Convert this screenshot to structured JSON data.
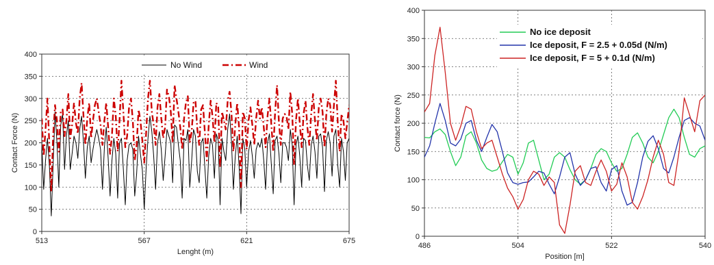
{
  "chart_data": [
    {
      "type": "line",
      "title": "",
      "xlabel": "Lenght (m)",
      "ylabel": "Contact Force (N)",
      "xlim": [
        513,
        675
      ],
      "ylim": [
        0,
        400
      ],
      "xticks": [
        "513",
        "567",
        "621",
        "675"
      ],
      "yticks": [
        "0",
        "50",
        "100",
        "150",
        "200",
        "250",
        "300",
        "350",
        "400"
      ],
      "grid": "dashed",
      "legend_position": "top-right",
      "series": [
        {
          "name": "No Wind",
          "color": "#000000",
          "style": "solid",
          "x": [
            513,
            514,
            515,
            516,
            517,
            518,
            519,
            520,
            521,
            522,
            523,
            524,
            525,
            526,
            527,
            528,
            529,
            530,
            531,
            532,
            533,
            534,
            535,
            536,
            537,
            538,
            539,
            540,
            541,
            542,
            543,
            544,
            545,
            546,
            547,
            548,
            549,
            550,
            551,
            552,
            553,
            554,
            555,
            556,
            557,
            558,
            559,
            560,
            561,
            562,
            563,
            564,
            565,
            566,
            567,
            568,
            569,
            570,
            571,
            572,
            573,
            574,
            575,
            576,
            577,
            578,
            579,
            580,
            581,
            582,
            583,
            584,
            585,
            586,
            587,
            588,
            589,
            590,
            591,
            592,
            593,
            594,
            595,
            596,
            597,
            598,
            599,
            600,
            601,
            602,
            603,
            604,
            605,
            606,
            607,
            608,
            609,
            610,
            611,
            612,
            613,
            614,
            615,
            616,
            617,
            618,
            619,
            620,
            621,
            622,
            623,
            624,
            625,
            626,
            627,
            628,
            629,
            630,
            631,
            632,
            633,
            634,
            635,
            636,
            637,
            638,
            639,
            640,
            641,
            642,
            643,
            644,
            645,
            646,
            647,
            648,
            649,
            650,
            651,
            652,
            653,
            654,
            655,
            656,
            657,
            658,
            659,
            660,
            661,
            662,
            663,
            664,
            665,
            666,
            667,
            668,
            669,
            670,
            671,
            672,
            673,
            674,
            675
          ],
          "y": [
            200,
            95,
            160,
            210,
            150,
            35,
            150,
            270,
            200,
            100,
            240,
            265,
            140,
            215,
            250,
            140,
            175,
            215,
            200,
            165,
            230,
            260,
            200,
            120,
            190,
            215,
            155,
            185,
            210,
            230,
            210,
            185,
            95,
            190,
            235,
            165,
            80,
            160,
            210,
            175,
            75,
            200,
            210,
            140,
            60,
            160,
            195,
            200,
            185,
            80,
            130,
            215,
            175,
            140,
            50,
            140,
            210,
            260,
            225,
            170,
            95,
            200,
            225,
            185,
            115,
            170,
            230,
            215,
            200,
            110,
            240,
            235,
            195,
            160,
            75,
            210,
            205,
            230,
            100,
            160,
            230,
            215,
            135,
            110,
            200,
            210,
            140,
            75,
            170,
            210,
            195,
            120,
            220,
            205,
            60,
            210,
            180,
            160,
            230,
            265,
            200,
            95,
            170,
            215,
            150,
            40,
            210,
            185,
            100,
            180,
            205,
            170,
            120,
            185,
            200,
            190,
            210,
            160,
            95,
            200,
            220,
            150,
            85,
            205,
            215,
            175,
            110,
            200,
            200,
            190,
            160,
            230,
            195,
            60,
            195,
            215,
            170,
            100,
            210,
            205,
            150,
            115,
            195,
            215,
            180,
            120,
            215,
            220,
            190,
            90,
            205,
            225,
            200,
            125,
            215,
            230,
            150,
            100,
            210,
            180,
            115,
            200,
            210
          ]
        },
        {
          "name": "Wind",
          "color": "#cc0000",
          "style": "dash-dot",
          "x": [
            513,
            514,
            515,
            516,
            517,
            518,
            519,
            520,
            521,
            522,
            523,
            524,
            525,
            526,
            527,
            528,
            529,
            530,
            531,
            532,
            533,
            534,
            535,
            536,
            537,
            538,
            539,
            540,
            541,
            542,
            543,
            544,
            545,
            546,
            547,
            548,
            549,
            550,
            551,
            552,
            553,
            554,
            555,
            556,
            557,
            558,
            559,
            560,
            561,
            562,
            563,
            564,
            565,
            566,
            567,
            568,
            569,
            570,
            571,
            572,
            573,
            574,
            575,
            576,
            577,
            578,
            579,
            580,
            581,
            582,
            583,
            584,
            585,
            586,
            587,
            588,
            589,
            590,
            591,
            592,
            593,
            594,
            595,
            596,
            597,
            598,
            599,
            600,
            601,
            602,
            603,
            604,
            605,
            606,
            607,
            608,
            609,
            610,
            611,
            612,
            613,
            614,
            615,
            616,
            617,
            618,
            619,
            620,
            621,
            622,
            623,
            624,
            625,
            626,
            627,
            628,
            629,
            630,
            631,
            632,
            633,
            634,
            635,
            636,
            637,
            638,
            639,
            640,
            641,
            642,
            643,
            644,
            645,
            646,
            647,
            648,
            649,
            650,
            651,
            652,
            653,
            654,
            655,
            656,
            657,
            658,
            659,
            660,
            661,
            662,
            663,
            664,
            665,
            666,
            667,
            668,
            669,
            670,
            671,
            672,
            673,
            674,
            675
          ],
          "y": [
            255,
            170,
            230,
            300,
            195,
            90,
            215,
            285,
            250,
            180,
            270,
            275,
            215,
            250,
            310,
            210,
            240,
            290,
            245,
            220,
            300,
            335,
            260,
            195,
            255,
            290,
            210,
            250,
            285,
            300,
            270,
            240,
            195,
            250,
            290,
            235,
            175,
            215,
            300,
            260,
            180,
            250,
            340,
            270,
            190,
            215,
            280,
            300,
            250,
            160,
            195,
            275,
            250,
            205,
            155,
            220,
            300,
            340,
            270,
            240,
            195,
            280,
            310,
            255,
            210,
            235,
            320,
            305,
            270,
            200,
            330,
            300,
            270,
            235,
            185,
            255,
            290,
            305,
            200,
            225,
            290,
            295,
            230,
            195,
            275,
            285,
            220,
            160,
            240,
            295,
            260,
            200,
            290,
            280,
            145,
            270,
            250,
            230,
            295,
            315,
            265,
            180,
            240,
            290,
            235,
            100,
            270,
            255,
            185,
            250,
            280,
            240,
            195,
            255,
            295,
            255,
            280,
            235,
            190,
            260,
            300,
            240,
            180,
            270,
            330,
            245,
            195,
            255,
            265,
            260,
            230,
            315,
            265,
            150,
            250,
            300,
            245,
            190,
            265,
            295,
            235,
            195,
            265,
            310,
            250,
            205,
            280,
            300,
            270,
            190,
            265,
            300,
            285,
            225,
            285,
            340,
            245,
            180,
            265,
            250,
            210,
            245,
            285
          ]
        }
      ]
    },
    {
      "type": "line",
      "title": "",
      "xlabel": "Position [m]",
      "ylabel": "Contact force (N)",
      "xlim": [
        486,
        540
      ],
      "ylim": [
        0,
        400
      ],
      "xticks": [
        "486",
        "504",
        "522",
        "540"
      ],
      "yticks": [
        "0",
        "50",
        "100",
        "150",
        "200",
        "250",
        "300",
        "350",
        "400"
      ],
      "grid": "dashed",
      "legend_position": "top-center",
      "series": [
        {
          "name": "No ice deposit",
          "color": "#22cc55",
          "x": [
            486,
            487,
            488,
            489,
            490,
            491,
            492,
            493,
            494,
            495,
            496,
            497,
            498,
            499,
            500,
            501,
            502,
            503,
            504,
            505,
            506,
            507,
            508,
            509,
            510,
            511,
            512,
            513,
            514,
            515,
            516,
            517,
            518,
            519,
            520,
            521,
            522,
            523,
            524,
            525,
            526,
            527,
            528,
            529,
            530,
            531,
            532,
            533,
            534,
            535,
            536,
            537,
            538,
            539,
            540
          ],
          "y": [
            175,
            174,
            185,
            190,
            180,
            150,
            125,
            140,
            178,
            185,
            165,
            135,
            120,
            115,
            118,
            132,
            145,
            140,
            110,
            130,
            165,
            170,
            135,
            100,
            110,
            140,
            148,
            140,
            118,
            100,
            92,
            100,
            120,
            145,
            155,
            150,
            130,
            115,
            120,
            145,
            175,
            183,
            165,
            140,
            130,
            150,
            180,
            210,
            225,
            210,
            175,
            145,
            140,
            155,
            160
          ]
        },
        {
          "name": "Ice deposit, F = 2.5 + 0.05d (N/m)",
          "color": "#2233aa",
          "x": [
            486,
            487,
            488,
            489,
            490,
            491,
            492,
            493,
            494,
            495,
            496,
            497,
            498,
            499,
            500,
            501,
            502,
            503,
            504,
            505,
            506,
            507,
            508,
            509,
            510,
            511,
            512,
            513,
            514,
            515,
            516,
            517,
            518,
            519,
            520,
            521,
            522,
            523,
            524,
            525,
            526,
            527,
            528,
            529,
            530,
            531,
            532,
            533,
            534,
            535,
            536,
            537,
            538,
            539,
            540
          ],
          "y": [
            140,
            160,
            200,
            235,
            205,
            165,
            160,
            172,
            200,
            205,
            170,
            150,
            175,
            198,
            185,
            150,
            112,
            95,
            92,
            95,
            96,
            105,
            115,
            112,
            92,
            75,
            105,
            140,
            148,
            110,
            90,
            100,
            120,
            123,
            95,
            80,
            118,
            125,
            80,
            55,
            60,
            95,
            140,
            168,
            178,
            155,
            120,
            112,
            140,
            175,
            205,
            210,
            200,
            195,
            170
          ]
        },
        {
          "name": "Ice deposit, F = 5 + 0.1d  (N/m)",
          "color": "#cc2222",
          "x": [
            486,
            487,
            488,
            489,
            490,
            491,
            492,
            493,
            494,
            495,
            496,
            497,
            498,
            499,
            500,
            501,
            502,
            503,
            504,
            505,
            506,
            507,
            508,
            509,
            510,
            511,
            512,
            513,
            514,
            515,
            516,
            517,
            518,
            519,
            520,
            521,
            522,
            523,
            524,
            525,
            526,
            527,
            528,
            529,
            530,
            531,
            532,
            533,
            534,
            535,
            536,
            537,
            538,
            539,
            540
          ],
          "y": [
            220,
            235,
            320,
            370,
            290,
            200,
            170,
            195,
            230,
            225,
            185,
            155,
            165,
            170,
            140,
            110,
            85,
            70,
            48,
            65,
            100,
            115,
            110,
            90,
            105,
            95,
            20,
            5,
            55,
            115,
            125,
            95,
            90,
            115,
            135,
            115,
            80,
            92,
            130,
            105,
            60,
            48,
            70,
            100,
            140,
            170,
            145,
            95,
            90,
            150,
            245,
            215,
            185,
            240,
            250
          ]
        }
      ]
    }
  ]
}
